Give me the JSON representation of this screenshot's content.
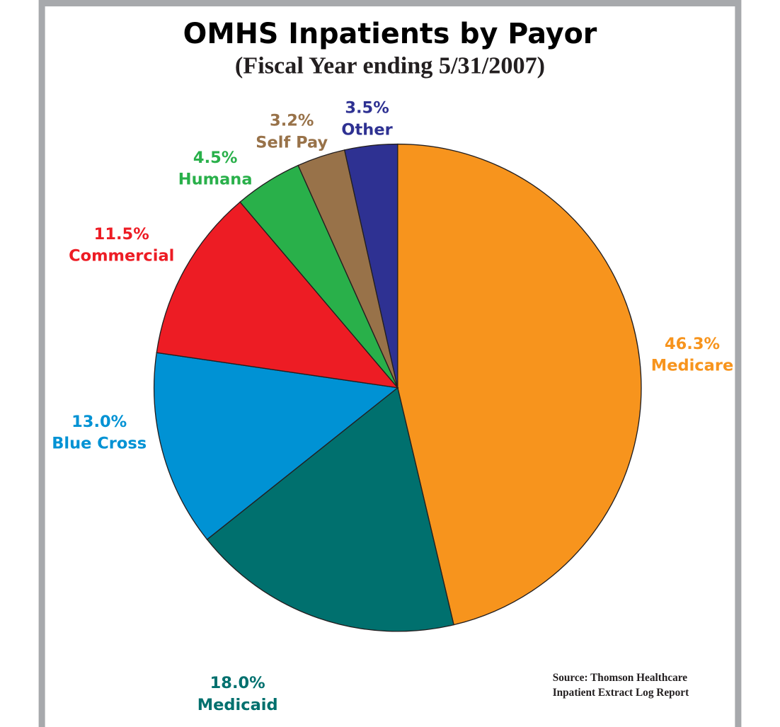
{
  "chart_data": {
    "type": "pie",
    "title": "OMHS Inpatients by Payor",
    "subtitle": "(Fiscal Year ending 5/31/2007)",
    "categories": [
      "Medicare",
      "Medicaid",
      "Blue Cross",
      "Commercial",
      "Humana",
      "Self Pay",
      "Other"
    ],
    "values": [
      46.3,
      18.0,
      13.0,
      11.5,
      4.5,
      3.2,
      3.5
    ],
    "value_labels": [
      "46.3%",
      "18.0%",
      "13.0%",
      "11.5%",
      "4.5%",
      "3.2%",
      "3.5%"
    ],
    "colors": [
      "#f7941d",
      "#00706e",
      "#0092d4",
      "#ed1c24",
      "#29b04a",
      "#987249",
      "#2e3192"
    ],
    "source": [
      "Source: Thomson Healthcare",
      "Inpatient Extract Log Report"
    ]
  }
}
